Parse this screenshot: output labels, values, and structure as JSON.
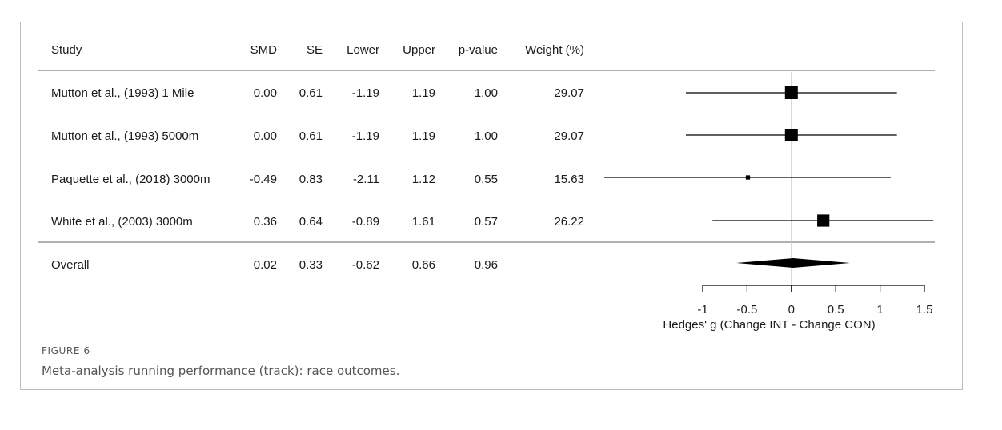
{
  "columns": [
    "Study",
    "SMD",
    "SE",
    "Lower",
    "Upper",
    "p-value",
    "Weight (%)"
  ],
  "rows": [
    {
      "study": "Mutton et al., (1993) 1 Mile",
      "smd": "0.00",
      "se": "0.61",
      "lower": "-1.19",
      "upper": "1.19",
      "p": "1.00",
      "weight": "29.07"
    },
    {
      "study": "Mutton et al., (1993) 5000m",
      "smd": "0.00",
      "se": "0.61",
      "lower": "-1.19",
      "upper": "1.19",
      "p": "1.00",
      "weight": "29.07"
    },
    {
      "study": "Paquette et al., (2018) 3000m",
      "smd": "-0.49",
      "se": "0.83",
      "lower": "-2.11",
      "upper": "1.12",
      "p": "0.55",
      "weight": "15.63"
    },
    {
      "study": "White et al., (2003) 3000m",
      "smd": "0.36",
      "se": "0.64",
      "lower": "-0.89",
      "upper": "1.61",
      "p": "0.57",
      "weight": "26.22"
    }
  ],
  "overall": {
    "study": "Overall",
    "smd": "0.02",
    "se": "0.33",
    "lower": "-0.62",
    "upper": "0.66",
    "p": "0.96",
    "weight": ""
  },
  "figure": {
    "label": "FIGURE 6",
    "caption": "Meta-analysis running performance (track): race outcomes."
  },
  "chart_data": {
    "type": "forest",
    "xlabel": "Hedges' g (Change INT - Change CON)",
    "xlim": [
      -1,
      1.5
    ],
    "xticks": [
      "-1",
      "-0.5",
      "0",
      "0.5",
      "1",
      "1.5"
    ],
    "reference_line": 0,
    "estimates": [
      {
        "study": "Mutton et al., (1993) 1 Mile",
        "smd": 0.0,
        "lower": -1.19,
        "upper": 1.19,
        "weight": 29.07
      },
      {
        "study": "Mutton et al., (1993) 5000m",
        "smd": 0.0,
        "lower": -1.19,
        "upper": 1.19,
        "weight": 29.07
      },
      {
        "study": "Paquette et al., (2018) 3000m",
        "smd": -0.49,
        "lower": -2.11,
        "upper": 1.12,
        "weight": 15.63
      },
      {
        "study": "White et al., (2003) 3000m",
        "smd": 0.36,
        "lower": -0.89,
        "upper": 1.61,
        "weight": 26.22
      }
    ],
    "overall": {
      "smd": 0.02,
      "lower": -0.62,
      "upper": 0.66
    },
    "colors": {
      "marker": "#000000",
      "line": "#000000",
      "rule": "#808080",
      "refline": "#c8c8c8"
    }
  }
}
